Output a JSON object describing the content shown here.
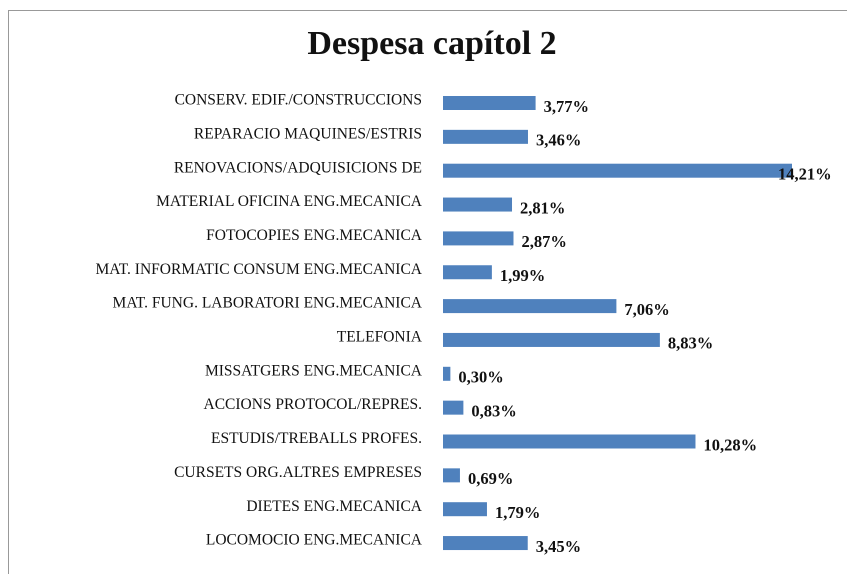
{
  "chart_data": {
    "type": "bar",
    "orientation": "horizontal",
    "title": "Despesa capítol 2",
    "categories": [
      "CONSERV. EDIF./CONSTRUCCIONS",
      "REPARACIO MAQUINES/ESTRIS",
      "RENOVACIONS/ADQUISICIONS DE",
      "MATERIAL OFICINA ENG.MECANICA",
      "FOTOCOPIES ENG.MECANICA",
      "MAT. INFORMATIC CONSUM ENG.MECANICA",
      "MAT. FUNG. LABORATORI ENG.MECANICA",
      "TELEFONIA",
      "MISSATGERS ENG.MECANICA",
      "ACCIONS PROTOCOL/REPRES.",
      "ESTUDIS/TREBALLS PROFES.",
      "CURSETS ORG.ALTRES EMPRESES",
      "DIETES ENG.MECANICA",
      "LOCOMOCIO ENG.MECANICA"
    ],
    "values": [
      3.77,
      3.46,
      14.21,
      2.81,
      2.87,
      1.99,
      7.06,
      8.83,
      0.3,
      0.83,
      10.28,
      0.69,
      1.79,
      3.45
    ],
    "value_labels": [
      "3,77%",
      "3,46%",
      "14,21%",
      "2,81%",
      "2,87%",
      "1,99%",
      "7,06%",
      "8,83%",
      "0,30%",
      "0,83%",
      "10,28%",
      "0,69%",
      "1,79%",
      "3,45%"
    ],
    "color": "#4f81bd"
  }
}
